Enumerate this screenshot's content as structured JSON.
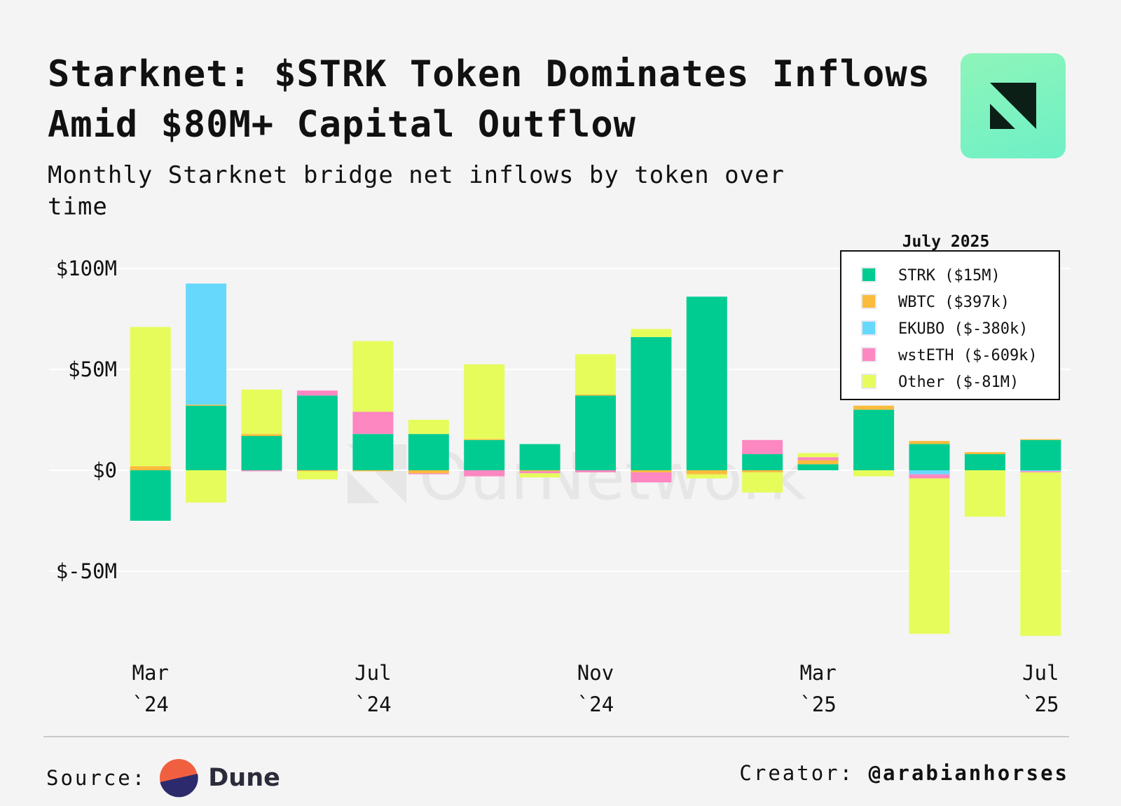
{
  "header": {
    "title": "Starknet: $STRK Token Dominates Inflows Amid $80M+ Capital Outflow",
    "subtitle": "Monthly Starknet bridge net inflows by token over time"
  },
  "footer": {
    "source_label": "Source:",
    "source_name": "Dune",
    "creator_label": "Creator:",
    "creator_handle": "@arabianhorses"
  },
  "watermark": "OurNetwork",
  "colors": {
    "STRK": "#00cc92",
    "WBTC": "#fbbb3c",
    "EKUBO": "#66d8fb",
    "wstETH": "#fd87c1",
    "Other": "#e6fc5b"
  },
  "chart_data": {
    "type": "bar",
    "stacked": true,
    "title": "Monthly Starknet bridge net inflows by token over time",
    "ylim": [
      -80,
      100
    ],
    "yticks": [
      {
        "value": 100,
        "label": "$100M"
      },
      {
        "value": 50,
        "label": "$50M"
      },
      {
        "value": 0,
        "label": "$0"
      },
      {
        "value": -50,
        "label": "$-50M"
      }
    ],
    "categories": [
      "Mar 2024",
      "Apr 2024",
      "May 2024",
      "Jun 2024",
      "Jul 2024",
      "Aug 2024",
      "Sep 2024",
      "Oct 2024",
      "Nov 2024",
      "Dec 2024",
      "Jan 2025",
      "Feb 2025",
      "Mar 2025",
      "Apr 2025",
      "May 2025",
      "Jun 2025",
      "Jul 2025"
    ],
    "xticks": [
      {
        "index": 0,
        "line1": "Mar",
        "line2": "`24"
      },
      {
        "index": 4,
        "line1": "Jul",
        "line2": "`24"
      },
      {
        "index": 8,
        "line1": "Nov",
        "line2": "`24"
      },
      {
        "index": 12,
        "line1": "Mar",
        "line2": "`25"
      },
      {
        "index": 16,
        "line1": "Jul",
        "line2": "`25"
      }
    ],
    "series": [
      {
        "name": "STRK",
        "values": [
          -25,
          32,
          17,
          37,
          18,
          18,
          15,
          13,
          37,
          66,
          86,
          8,
          3,
          30,
          13,
          8,
          15
        ]
      },
      {
        "name": "WBTC",
        "values": [
          2,
          0.5,
          1,
          -0.5,
          -0.5,
          -1.5,
          0.5,
          -0.5,
          0.5,
          -1,
          -2,
          -1,
          2,
          2,
          1.5,
          1,
          0.4
        ]
      },
      {
        "name": "EKUBO",
        "values": [
          0,
          60,
          0,
          0,
          0,
          0,
          0,
          0,
          0,
          0,
          0,
          0,
          0,
          0,
          -2,
          0,
          -0.4
        ]
      },
      {
        "name": "wstETH",
        "values": [
          0,
          0,
          -0.5,
          2.5,
          11,
          -0.5,
          -3,
          -1,
          -1,
          -5,
          0,
          7,
          1.5,
          0,
          -2,
          0,
          -0.6
        ]
      },
      {
        "name": "Other",
        "values": [
          69,
          -16,
          22,
          -4,
          35,
          7,
          37,
          -2,
          20,
          4,
          -2,
          -10,
          2,
          -3,
          -77,
          -23,
          -81
        ]
      }
    ],
    "legend": {
      "title": "July 2025",
      "position": "top-right",
      "entries": [
        {
          "name": "STRK",
          "label": "STRK ($15M)"
        },
        {
          "name": "WBTC",
          "label": "WBTC ($397k)"
        },
        {
          "name": "EKUBO",
          "label": "EKUBO ($-380k)"
        },
        {
          "name": "wstETH",
          "label": "wstETH ($-609k)"
        },
        {
          "name": "Other",
          "label": "Other ($-81M)"
        }
      ]
    }
  }
}
